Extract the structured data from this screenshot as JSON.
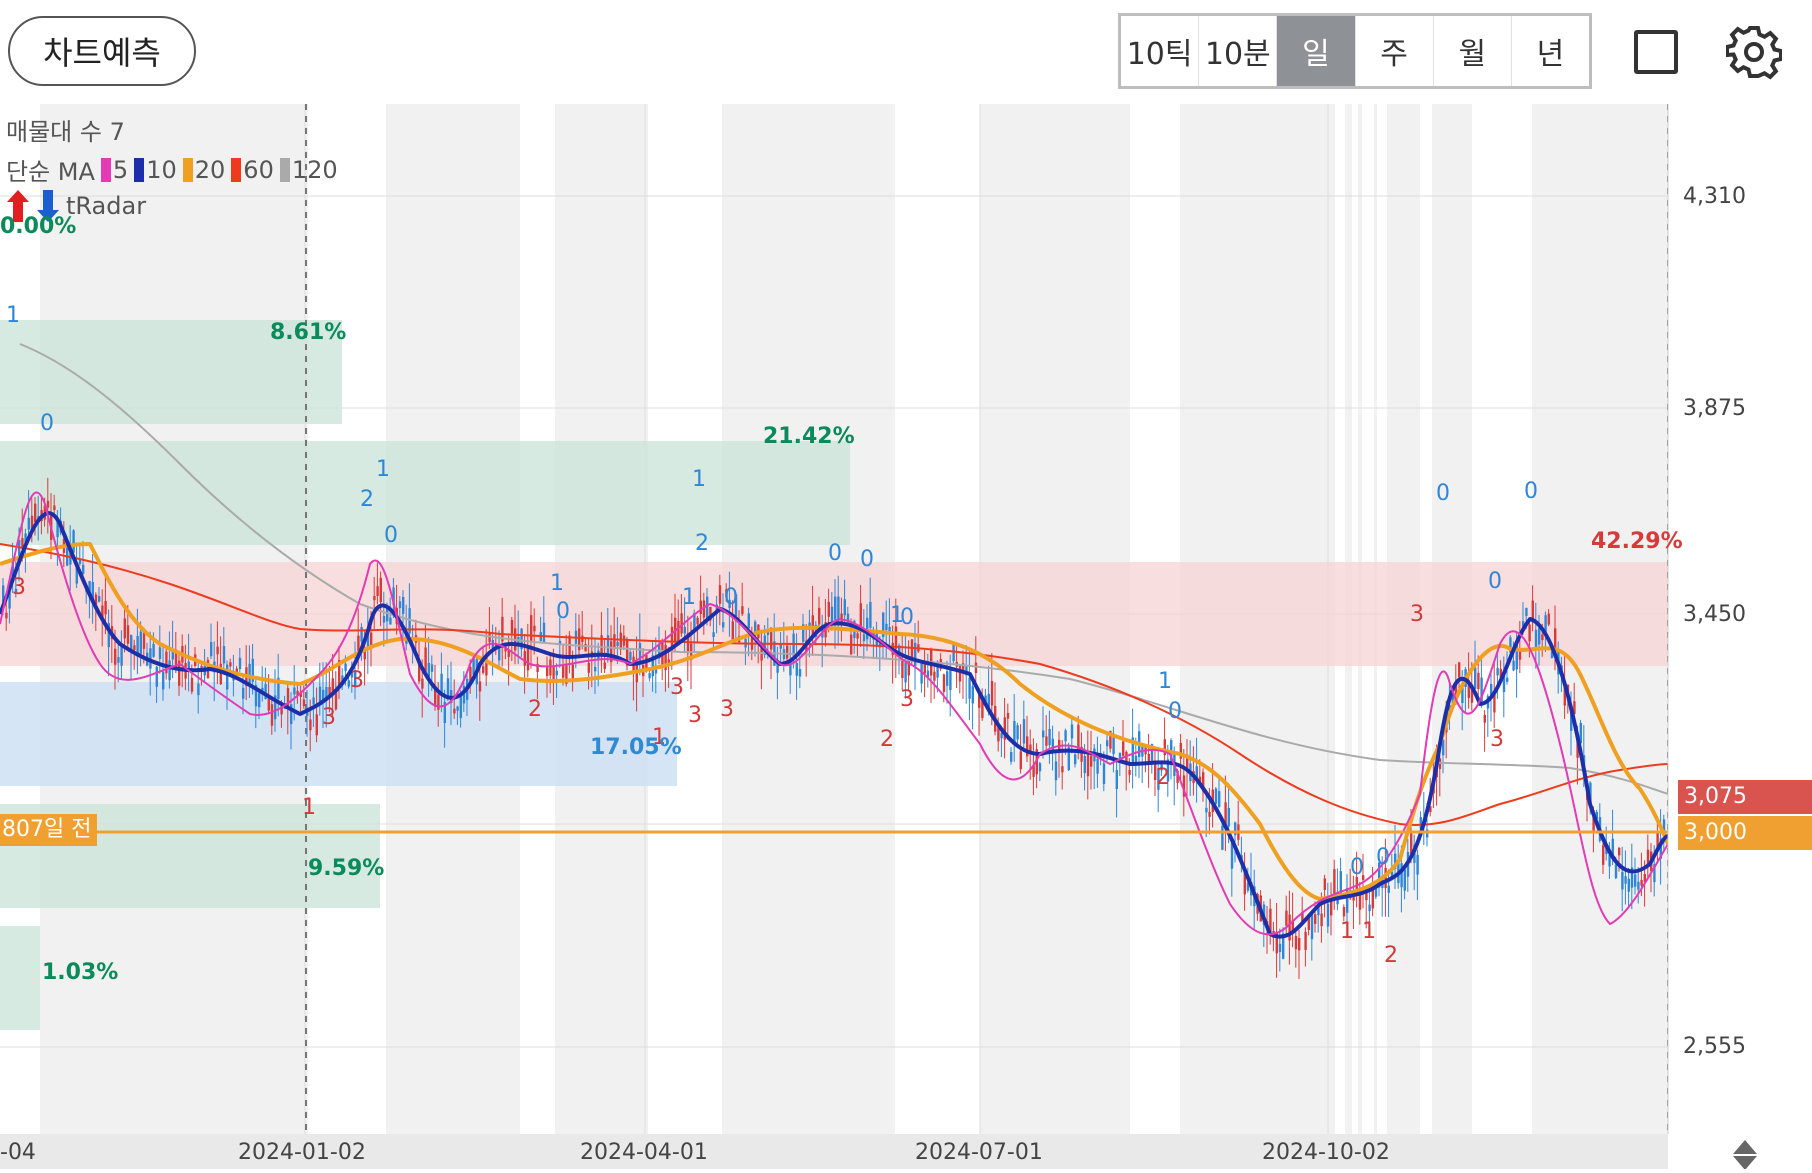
{
  "toolbar": {
    "predict_label": "차트예측",
    "periods": [
      "10틱",
      "10분",
      "일",
      "주",
      "월",
      "년"
    ],
    "active_period": "일"
  },
  "legend": {
    "volume_profile": "매물대 수 7",
    "ma_prefix": "단순 MA",
    "ma_periods": [
      {
        "label": "5",
        "color": "#e23bb5"
      },
      {
        "label": "10",
        "color": "#1d2fa8"
      },
      {
        "label": "20",
        "color": "#f0a020"
      },
      {
        "label": "60",
        "color": "#ee3b1d"
      },
      {
        "label": "120",
        "color": "#aaaaaa"
      }
    ],
    "tradar_label": "tRadar"
  },
  "price_axis": {
    "ticks": [
      "4,310",
      "3,875",
      "3,450",
      "2,555"
    ],
    "last_price": "3,075",
    "marker_price": "3,000",
    "last_price_color": "#d9534f",
    "marker_color": "#f0a030"
  },
  "date_axis": [
    "-04",
    "2024-01-02",
    "2024-04-01",
    "2024-07-01",
    "2024-10-02"
  ],
  "profile_percents": [
    {
      "text": "0.00%",
      "color": "#0b8a5c"
    },
    {
      "text": "8.61%",
      "color": "#0b8a5c"
    },
    {
      "text": "21.42%",
      "color": "#0b8a5c"
    },
    {
      "text": "42.29%",
      "color": "#d83a3a"
    },
    {
      "text": "17.05%",
      "color": "#2f8ad0"
    },
    {
      "text": "9.59%",
      "color": "#0b8a5c"
    },
    {
      "text": "1.03%",
      "color": "#0b8a5c"
    }
  ],
  "horizontal_marker": {
    "label": "807일 전"
  },
  "signal_labels": [
    {
      "text": "1",
      "color": "#2f86d6"
    },
    {
      "text": "0",
      "color": "#2f86d6"
    },
    {
      "text": "3",
      "color": "#d03a3a"
    },
    {
      "text": "2",
      "color": "#2f86d6"
    },
    {
      "text": "1",
      "color": "#2f86d6"
    },
    {
      "text": "0",
      "color": "#2f86d6"
    },
    {
      "text": "3",
      "color": "#d03a3a"
    },
    {
      "text": "3",
      "color": "#d03a3a"
    },
    {
      "text": "1",
      "color": "#d03a3a"
    },
    {
      "text": "1",
      "color": "#2f86d6"
    },
    {
      "text": "0",
      "color": "#2f86d6"
    },
    {
      "text": "2",
      "color": "#d03a3a"
    },
    {
      "text": "3",
      "color": "#d03a3a"
    },
    {
      "text": "1",
      "color": "#2f86d6"
    },
    {
      "text": "2",
      "color": "#2f86d6"
    },
    {
      "text": "1",
      "color": "#2f86d6"
    },
    {
      "text": "0",
      "color": "#2f86d6"
    },
    {
      "text": "3",
      "color": "#d03a3a"
    },
    {
      "text": "3",
      "color": "#d03a3a"
    },
    {
      "text": "1",
      "color": "#d03a3a"
    },
    {
      "text": "0",
      "color": "#2f86d6"
    },
    {
      "text": "0",
      "color": "#2f86d6"
    },
    {
      "text": "1",
      "color": "#2f86d6"
    },
    {
      "text": "0",
      "color": "#2f86d6"
    },
    {
      "text": "2",
      "color": "#d03a3a"
    },
    {
      "text": "3",
      "color": "#d03a3a"
    },
    {
      "text": "1",
      "color": "#2f86d6"
    },
    {
      "text": "0",
      "color": "#2f86d6"
    },
    {
      "text": "2",
      "color": "#d03a3a"
    },
    {
      "text": "0",
      "color": "#2f86d6"
    },
    {
      "text": "0",
      "color": "#2f86d6"
    },
    {
      "text": "1",
      "color": "#d03a3a"
    },
    {
      "text": "1",
      "color": "#d03a3a"
    },
    {
      "text": "2",
      "color": "#d03a3a"
    },
    {
      "text": "0",
      "color": "#2f86d6"
    },
    {
      "text": "3",
      "color": "#d03a3a"
    },
    {
      "text": "0",
      "color": "#2f86d6"
    },
    {
      "text": "3",
      "color": "#d03a3a"
    },
    {
      "text": "0",
      "color": "#2f86d6"
    }
  ]
}
